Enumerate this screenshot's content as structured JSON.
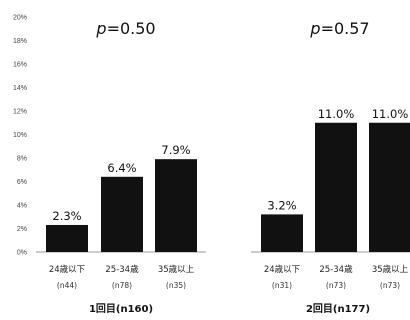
{
  "chart_data": {
    "type": "bar",
    "y_unit": "%",
    "ylim": [
      0,
      20
    ],
    "yticks": [
      "0%",
      "2%",
      "4%",
      "6%",
      "8%",
      "10%",
      "12%",
      "14%",
      "16%",
      "18%",
      "20%"
    ],
    "grid": false,
    "groups": [
      {
        "label": "1回目(n160)",
        "p_prefix": "p",
        "p_value": "=0.50",
        "categories": [
          "24歳以下",
          "25-34歳",
          "35歳以上"
        ],
        "n_labels": [
          "(n44)",
          "(n78)",
          "(n35)"
        ],
        "values": [
          2.3,
          6.4,
          7.9
        ],
        "value_labels": [
          "2.3%",
          "6.4%",
          "7.9%"
        ]
      },
      {
        "label": "2回目(n177)",
        "p_prefix": "p",
        "p_value": "=0.57",
        "categories": [
          "24歳以下",
          "25-34歳",
          "35歳以上"
        ],
        "n_labels": [
          "(n31)",
          "(n73)",
          "(n73)"
        ],
        "values": [
          3.2,
          11.0,
          11.0
        ],
        "value_labels": [
          "3.2%",
          "11.0%",
          "11.0%"
        ]
      }
    ],
    "colors": {
      "bar": "#111111",
      "axis": "#9a9a9a"
    }
  }
}
